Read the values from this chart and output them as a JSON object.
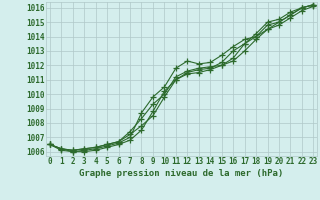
{
  "title": "Graphe pression niveau de la mer (hPa)",
  "background_color": "#d4eeed",
  "grid_color": "#b0c8c8",
  "line_color": "#2d6a2d",
  "x_labels": [
    "0",
    "1",
    "2",
    "3",
    "4",
    "5",
    "6",
    "7",
    "8",
    "9",
    "10",
    "11",
    "12",
    "13",
    "14",
    "15",
    "16",
    "17",
    "18",
    "19",
    "20",
    "21",
    "22",
    "23"
  ],
  "y_ticks": [
    1006,
    1007,
    1008,
    1009,
    1010,
    1011,
    1012,
    1013,
    1014,
    1015,
    1016
  ],
  "ylim": [
    1005.7,
    1016.4
  ],
  "xlim": [
    -0.3,
    23.3
  ],
  "curves": [
    [
      1006.5,
      1006.2,
      1006.1,
      1006.2,
      1006.3,
      1006.5,
      1006.7,
      1007.2,
      1007.8,
      1008.5,
      1009.8,
      1011.0,
      1011.5,
      1011.7,
      1011.8,
      1012.2,
      1013.0,
      1013.5,
      1014.2,
      1015.0,
      1015.2,
      1015.7,
      1016.0,
      1016.2
    ],
    [
      1006.5,
      1006.2,
      1006.1,
      1006.2,
      1006.3,
      1006.5,
      1006.7,
      1007.4,
      1008.3,
      1009.3,
      1010.0,
      1011.2,
      1011.6,
      1011.8,
      1011.9,
      1012.0,
      1012.5,
      1013.5,
      1014.0,
      1014.8,
      1015.0,
      1015.5,
      1016.0,
      1016.2
    ],
    [
      1006.5,
      1006.2,
      1006.0,
      1006.1,
      1006.2,
      1006.4,
      1006.6,
      1007.0,
      1008.7,
      1009.8,
      1010.5,
      1011.8,
      1012.3,
      1012.1,
      1012.2,
      1012.7,
      1013.3,
      1013.8,
      1014.0,
      1014.5,
      1014.8,
      1015.3,
      1015.8,
      1016.1
    ],
    [
      1006.5,
      1006.1,
      1006.0,
      1006.0,
      1006.1,
      1006.3,
      1006.5,
      1006.8,
      1007.5,
      1008.8,
      1010.2,
      1011.0,
      1011.4,
      1011.5,
      1011.7,
      1012.0,
      1012.3,
      1013.0,
      1013.8,
      1014.5,
      1015.0,
      1015.5,
      1016.0,
      1016.2
    ]
  ]
}
